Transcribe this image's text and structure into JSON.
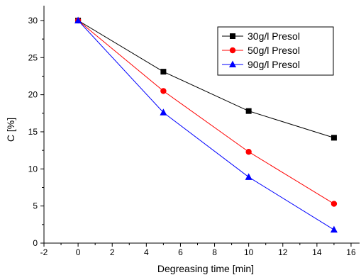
{
  "chart_data": {
    "type": "line",
    "title": "",
    "xlabel": "Degreasing time [min]",
    "ylabel": "C [%]",
    "xlim": [
      -2,
      16.5
    ],
    "ylim": [
      0,
      32
    ],
    "xticks": [
      -2,
      0,
      2,
      4,
      6,
      8,
      10,
      12,
      14,
      16
    ],
    "yticks": [
      0,
      5,
      10,
      15,
      20,
      25,
      30
    ],
    "grid": false,
    "legend_position": "top-right",
    "series": [
      {
        "name": "30g/l Presol",
        "color": "#000000",
        "marker": "square",
        "x": [
          0,
          5,
          10,
          15
        ],
        "y": [
          30,
          23.1,
          17.8,
          14.2
        ]
      },
      {
        "name": "50g/l Presol",
        "color": "#ff0000",
        "marker": "circle",
        "x": [
          0,
          5,
          10,
          15
        ],
        "y": [
          30,
          20.5,
          12.3,
          5.3
        ]
      },
      {
        "name": "90g/l Presol",
        "color": "#0000ff",
        "marker": "triangle",
        "x": [
          0,
          5,
          10,
          15
        ],
        "y": [
          30,
          17.6,
          8.9,
          1.8
        ]
      }
    ]
  }
}
